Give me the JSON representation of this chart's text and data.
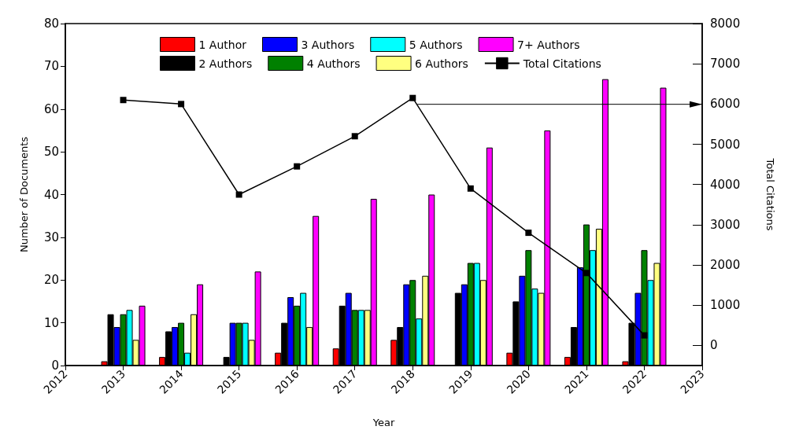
{
  "chart_data": {
    "type": "bar",
    "xlabel": "Year",
    "ylabel": "Number of Documents",
    "y2label": "Total Citations",
    "x": [
      2013,
      2014,
      2015,
      2016,
      2017,
      2018,
      2019,
      2020,
      2021,
      2022
    ],
    "series": [
      {
        "name": "1 Author",
        "color": "#ff0000",
        "values": [
          1,
          2,
          0,
          3,
          4,
          6,
          0,
          3,
          2,
          1
        ]
      },
      {
        "name": "2 Authors",
        "color": "#000000",
        "values": [
          12,
          8,
          2,
          10,
          14,
          9,
          17,
          15,
          9,
          10
        ]
      },
      {
        "name": "3 Authors",
        "color": "#0000ff",
        "values": [
          9,
          9,
          10,
          16,
          17,
          19,
          19,
          21,
          23,
          17
        ]
      },
      {
        "name": "4 Authors",
        "color": "#008000",
        "values": [
          12,
          10,
          10,
          14,
          13,
          20,
          24,
          27,
          33,
          27
        ]
      },
      {
        "name": "5 Authors",
        "color": "#00ffff",
        "values": [
          13,
          3,
          10,
          17,
          13,
          11,
          24,
          18,
          27,
          20
        ]
      },
      {
        "name": "6 Authors",
        "color": "#ffff80",
        "values": [
          6,
          12,
          6,
          9,
          13,
          21,
          20,
          17,
          32,
          24
        ]
      },
      {
        "name": "7+ Authors",
        "color": "#ff00ff",
        "values": [
          14,
          19,
          22,
          35,
          39,
          40,
          51,
          55,
          67,
          65
        ]
      },
      {
        "name": "Total Citations",
        "type": "line",
        "axis": "y2",
        "color": "#000000",
        "marker": "square",
        "values": [
          6100,
          6000,
          3750,
          4450,
          5200,
          6150,
          3900,
          2800,
          1800,
          250
        ]
      }
    ],
    "xlim": [
      2012,
      2023
    ],
    "xticks": [
      2012,
      2013,
      2014,
      2015,
      2016,
      2017,
      2018,
      2019,
      2020,
      2021,
      2022,
      2023
    ],
    "ylim": [
      0,
      80
    ],
    "yticks": [
      0,
      10,
      20,
      30,
      40,
      50,
      60,
      70,
      80
    ],
    "y2lim": [
      -500,
      8000
    ],
    "y2ticks": [
      0,
      1000,
      2000,
      3000,
      4000,
      5000,
      6000,
      7000,
      8000
    ],
    "grid": false,
    "legend": "top",
    "line_style": "solid"
  }
}
